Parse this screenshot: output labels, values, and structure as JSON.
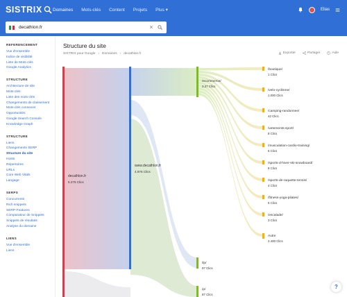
{
  "app": {
    "logo": "SISTRIX",
    "nav": [
      "Domaines",
      "Mots-clés",
      "Content",
      "Projets",
      "Plus"
    ],
    "active_nav": "Domaines",
    "user": "Elias"
  },
  "search": {
    "value": "decathlon.fr",
    "country": "Italie"
  },
  "sidebar": {
    "sections": [
      {
        "title": "REFERENCEMENT",
        "items": [
          {
            "label": "Vue d'ensemble",
            "bold": false
          },
          {
            "label": "Indice de visibilité",
            "bold": false
          },
          {
            "label": "Liste de Mots-clés",
            "bold": false
          },
          {
            "label": "Google Analytics",
            "bold": false
          }
        ]
      },
      {
        "title": "STRUCTURE",
        "items": [
          {
            "label": "Architecture de site",
            "bold": false
          },
          {
            "label": "Mots-clés",
            "bold": false
          },
          {
            "label": "Liste des mots-clés",
            "bold": false
          },
          {
            "label": "Changements de classement",
            "bold": false
          },
          {
            "label": "Mots-clés connexes",
            "bold": false
          },
          {
            "label": "Opportunités",
            "bold": false
          },
          {
            "label": "Google Search Console",
            "bold": false
          },
          {
            "label": "Knowledge Graph",
            "bold": false
          }
        ]
      },
      {
        "title": "STRUCTURE",
        "items": [
          {
            "label": "Liens",
            "bold": false
          },
          {
            "label": "Changements SERP",
            "bold": false
          },
          {
            "label": "Structure du site",
            "bold": true
          },
          {
            "label": "Hosts",
            "bold": false
          },
          {
            "label": "Répertoires",
            "bold": false
          },
          {
            "label": "URLs",
            "bold": false
          },
          {
            "label": "Core Web Vitals",
            "bold": false
          },
          {
            "label": "Langage",
            "bold": false
          }
        ]
      },
      {
        "title": "SERPS",
        "items": [
          {
            "label": "Concurrents",
            "bold": false
          },
          {
            "label": "Rich snippets",
            "bold": false
          },
          {
            "label": "SERP-Features",
            "bold": false
          },
          {
            "label": "Comparateur de Snippets",
            "bold": false
          },
          {
            "label": "Snippets de résultats",
            "bold": false
          },
          {
            "label": "Analyse du domaine",
            "bold": false
          }
        ]
      },
      {
        "title": "LIENS",
        "items": [
          {
            "label": "Vue d'ensemble",
            "bold": false
          },
          {
            "label": "Liens",
            "bold": false
          }
        ]
      }
    ]
  },
  "page": {
    "title": "Structure du site",
    "breadcrumb": [
      "SISTRIX pour Google",
      "Domaines",
      "decathlon.fr"
    ],
    "actions": [
      "Exporter",
      "Partager",
      "Aide"
    ]
  },
  "sankey": {
    "root": {
      "label": "decathlon.fr",
      "value": "5.276 Clics"
    },
    "host": {
      "label": "www.decathlon.fr",
      "value": "4.876 Clics"
    },
    "paths": [
      {
        "label": "/ecommerce/",
        "value": "3.37 Clics"
      },
      {
        "label": "/lp/",
        "value": "97 Clics"
      },
      {
        "label": "/p/",
        "value": "87 Clics"
      }
    ],
    "leaves": [
      {
        "label": "/boutique/",
        "value": "1 Clics"
      },
      {
        "label": "/velo-cyclisme/",
        "value": "1.000 Clics"
      },
      {
        "label": "/camping-randonnee/",
        "value": "42 Clics"
      },
      {
        "label": "/vetements-sport/",
        "value": "8 Clics"
      },
      {
        "label": "/musculation-cardio-training/",
        "value": "6 Clics"
      },
      {
        "label": "/sports-d-hiver-ski-snowboard/",
        "value": "8 Clics"
      },
      {
        "label": "/sports-de-raquette-tennis/",
        "value": "4 Clics"
      },
      {
        "label": "/fitness-yoga-pilates/",
        "value": "5 Clics"
      },
      {
        "label": "/escalade/",
        "value": "3 Clics"
      },
      {
        "label": "Autre",
        "value": "2.400 Clics"
      }
    ]
  },
  "colors": {
    "brand": "#2f6fd6",
    "root_bar": "#d63b4e",
    "host_bar": "#2f6fd6",
    "path_bar": "#7cbd1e",
    "leaf_bar": "#f2b400"
  }
}
